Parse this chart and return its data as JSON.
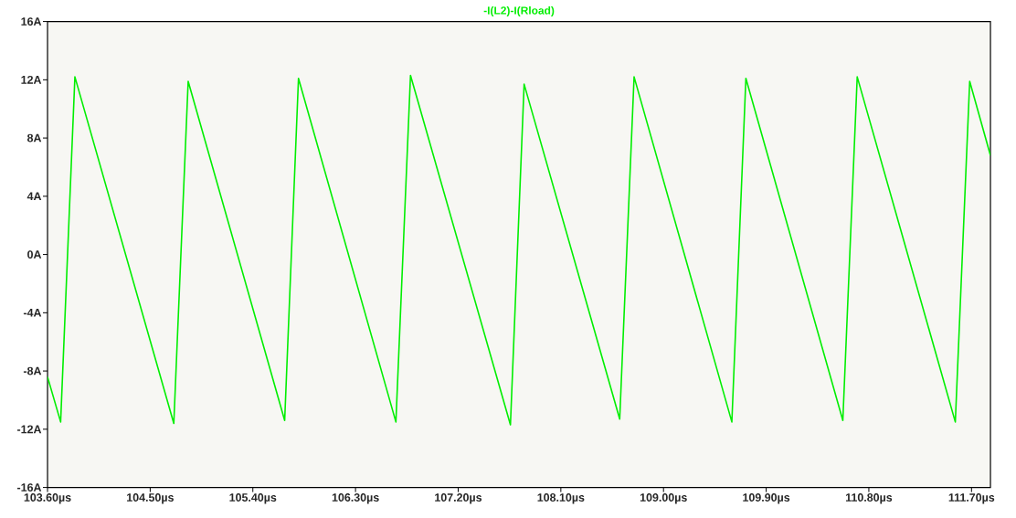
{
  "chart_data": {
    "type": "line",
    "title": "-I(L2)-I(Rload)",
    "color": "#00ee00",
    "x": [
      103.6,
      103.715,
      103.84,
      104.707,
      104.833,
      105.679,
      105.8,
      106.654,
      106.782,
      107.658,
      107.778,
      108.616,
      108.742,
      109.599,
      109.722,
      110.572,
      110.698,
      111.558,
      111.684,
      111.866
    ],
    "values": [
      -8.4,
      -11.5,
      12.2,
      -11.6,
      11.9,
      -11.4,
      12.1,
      -11.5,
      12.3,
      -11.7,
      11.7,
      -11.3,
      12.2,
      -11.5,
      12.1,
      -11.4,
      12.2,
      -11.5,
      11.9,
      6.8
    ],
    "xlim": [
      103.6,
      111.866
    ],
    "ylim": [
      -16,
      16
    ],
    "xticks": [
      {
        "value": 103.6,
        "label": "103.60µs"
      },
      {
        "value": 104.5,
        "label": "104.50µs"
      },
      {
        "value": 105.4,
        "label": "105.40µs"
      },
      {
        "value": 106.3,
        "label": "106.30µs"
      },
      {
        "value": 107.2,
        "label": "107.20µs"
      },
      {
        "value": 108.1,
        "label": "108.10µs"
      },
      {
        "value": 109.0,
        "label": "109.00µs"
      },
      {
        "value": 109.9,
        "label": "109.90µs"
      },
      {
        "value": 110.8,
        "label": "110.80µs"
      },
      {
        "value": 111.7,
        "label": "111.70µs"
      }
    ],
    "yticks": [
      {
        "value": -16,
        "label": "-16A"
      },
      {
        "value": -12,
        "label": "-12A"
      },
      {
        "value": -8,
        "label": "-8A"
      },
      {
        "value": -4,
        "label": "-4A"
      },
      {
        "value": 0,
        "label": "0A"
      },
      {
        "value": 4,
        "label": "4A"
      },
      {
        "value": 8,
        "label": "8A"
      },
      {
        "value": 12,
        "label": "12A"
      },
      {
        "value": 16,
        "label": "16A"
      }
    ],
    "grid": false,
    "marker": "none",
    "line_style": "solid"
  }
}
